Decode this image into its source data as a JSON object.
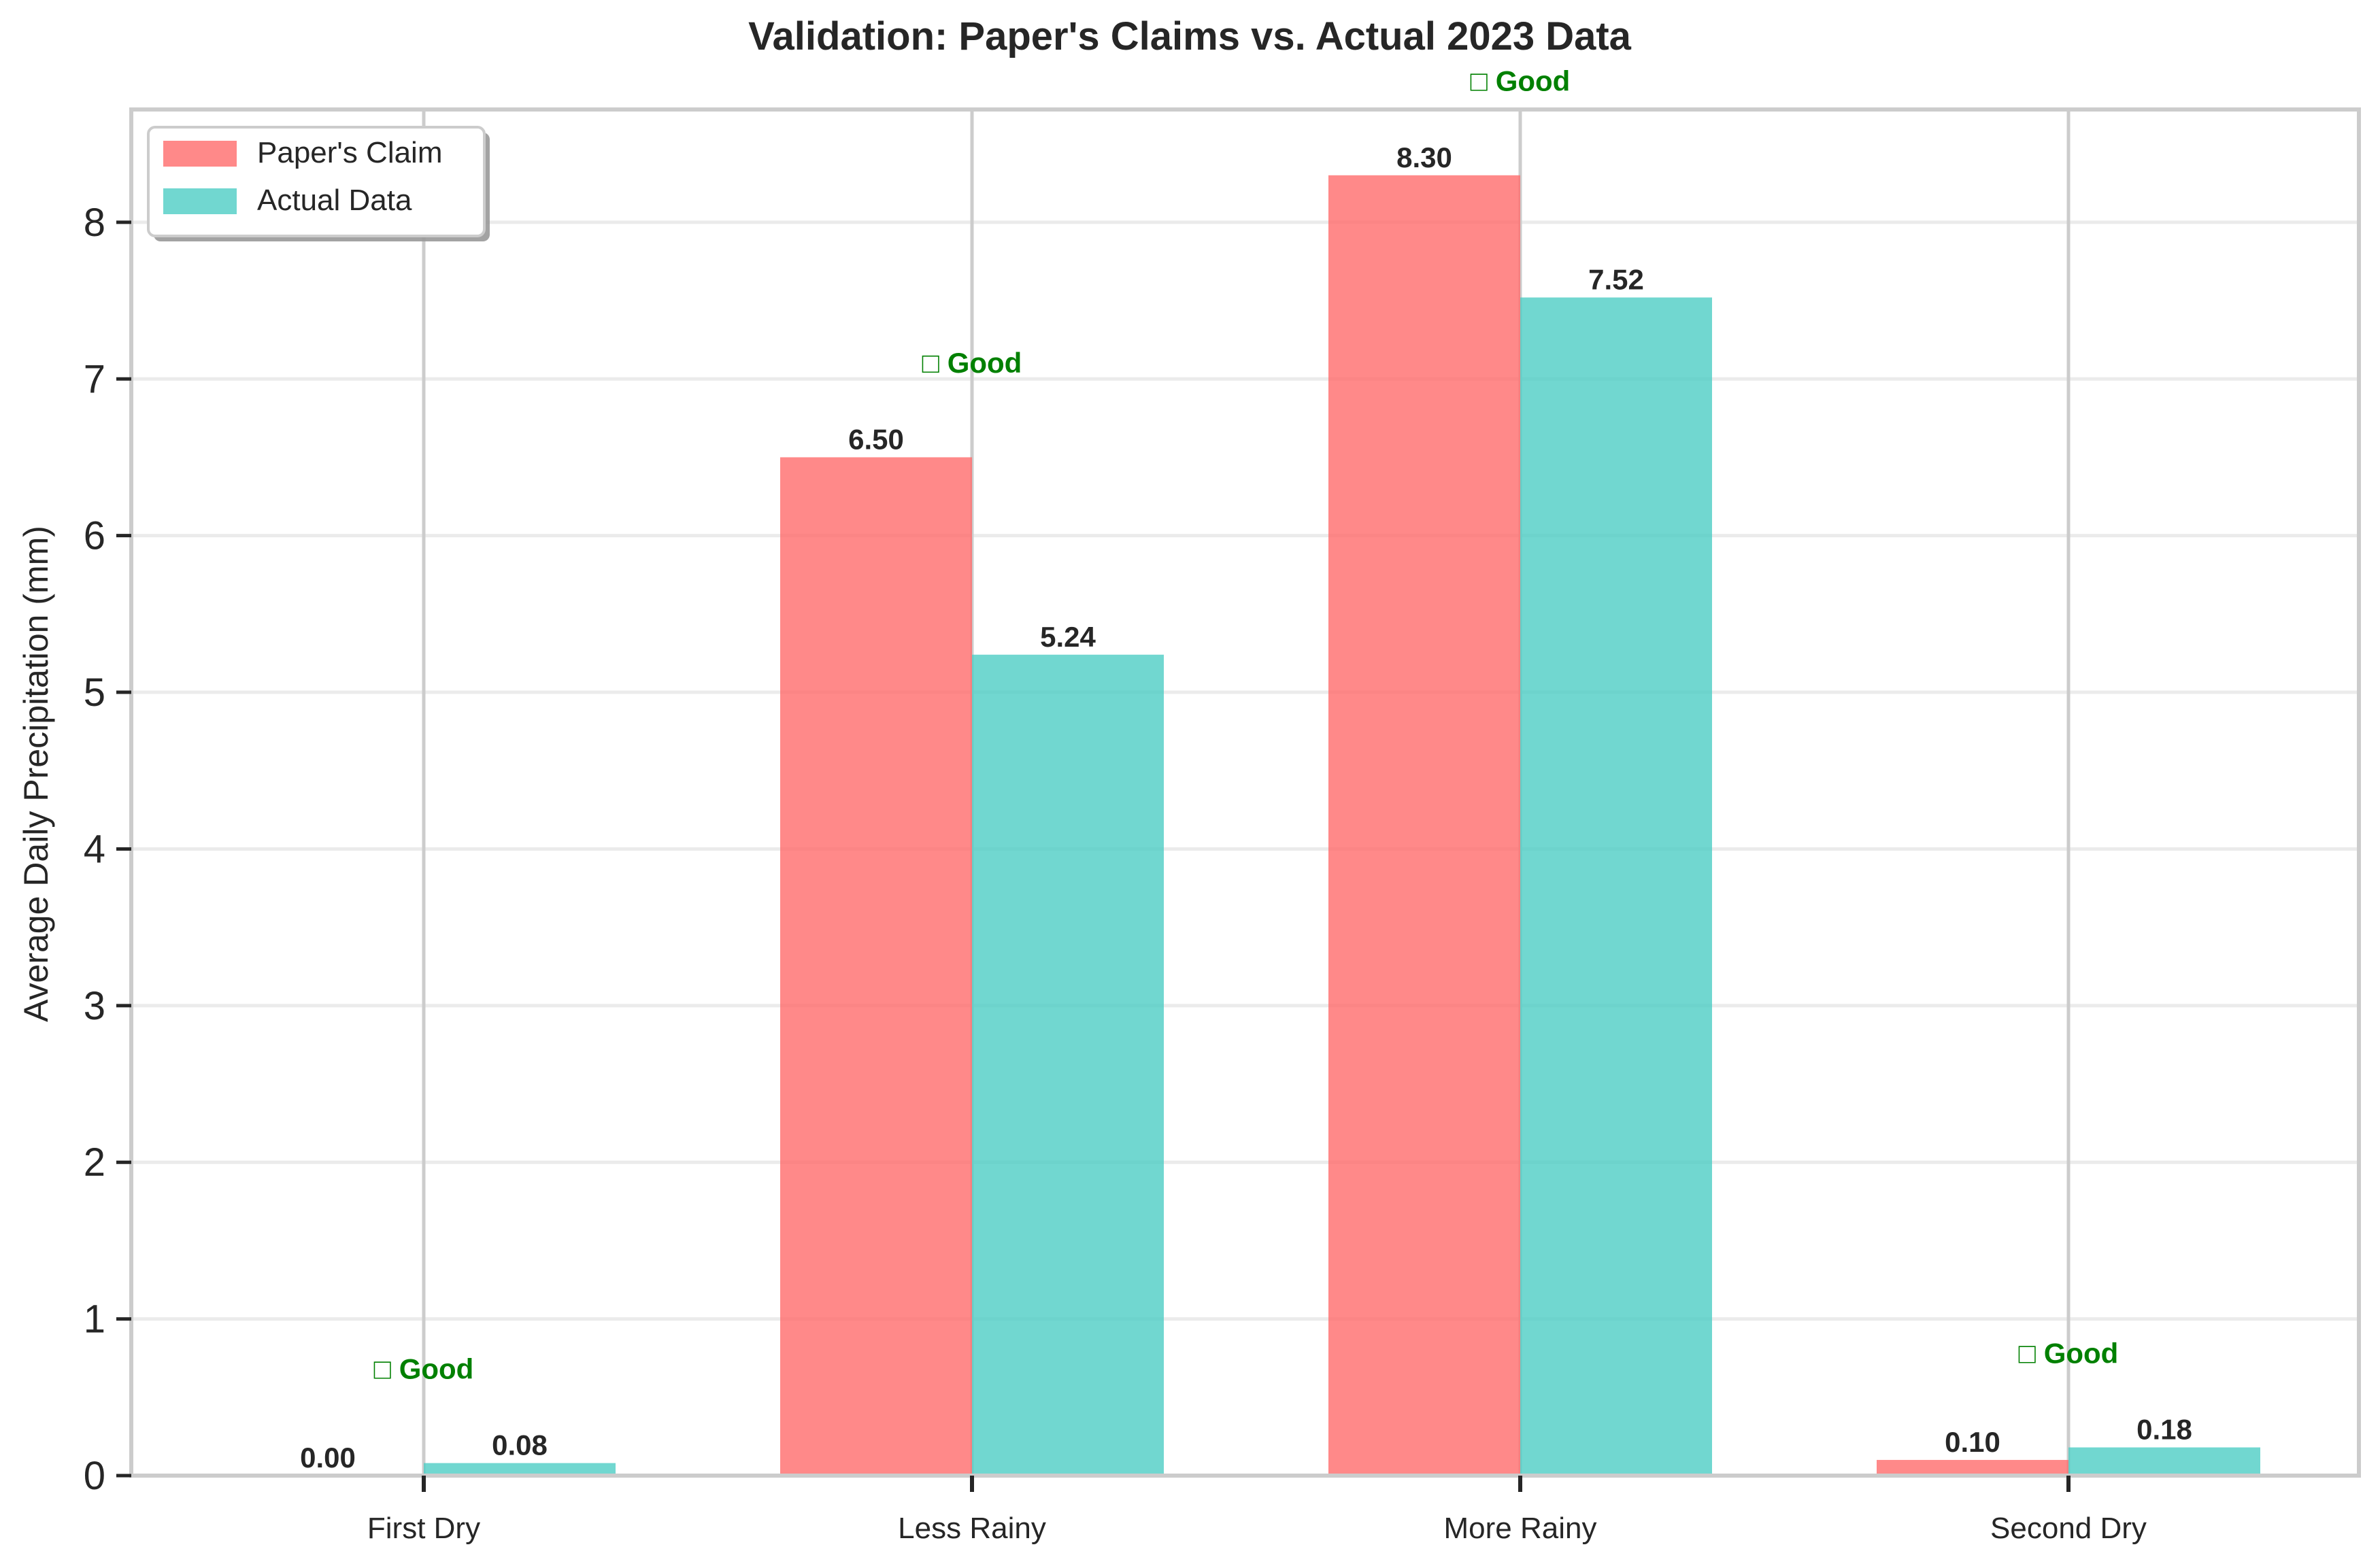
{
  "chart_data": {
    "type": "bar",
    "title": "Validation: Paper's Claims vs. Actual 2023 Data",
    "xlabel": "",
    "ylabel": "Average Daily Precipitation (mm)",
    "categories": [
      "First Dry",
      "Less Rainy",
      "More Rainy",
      "Second Dry"
    ],
    "series": [
      {
        "name": "Paper's Claim",
        "values": [
          0.0,
          6.5,
          8.3,
          0.1
        ],
        "labels": [
          "0.00",
          "6.50",
          "8.30",
          "0.10"
        ],
        "color": "#ff6b6b"
      },
      {
        "name": "Actual Data",
        "values": [
          0.08,
          5.24,
          7.52,
          0.18
        ],
        "labels": [
          "0.08",
          "5.24",
          "7.52",
          "0.18"
        ],
        "color": "#4ecdc4"
      }
    ],
    "annotations": [
      {
        "category": "First Dry",
        "text": "□ Good",
        "y": 0.68
      },
      {
        "category": "Less Rainy",
        "text": "□ Good",
        "y": 7.1
      },
      {
        "category": "More Rainy",
        "text": "□ Good",
        "y": 8.9
      },
      {
        "category": "Second Dry",
        "text": "□ Good",
        "y": 0.78
      }
    ],
    "annotation_color": "#008000",
    "ylim": [
      0,
      8.72
    ],
    "yticks": [
      0,
      1,
      2,
      3,
      4,
      5,
      6,
      7,
      8
    ],
    "grid": true,
    "legend_position": "top-left"
  }
}
